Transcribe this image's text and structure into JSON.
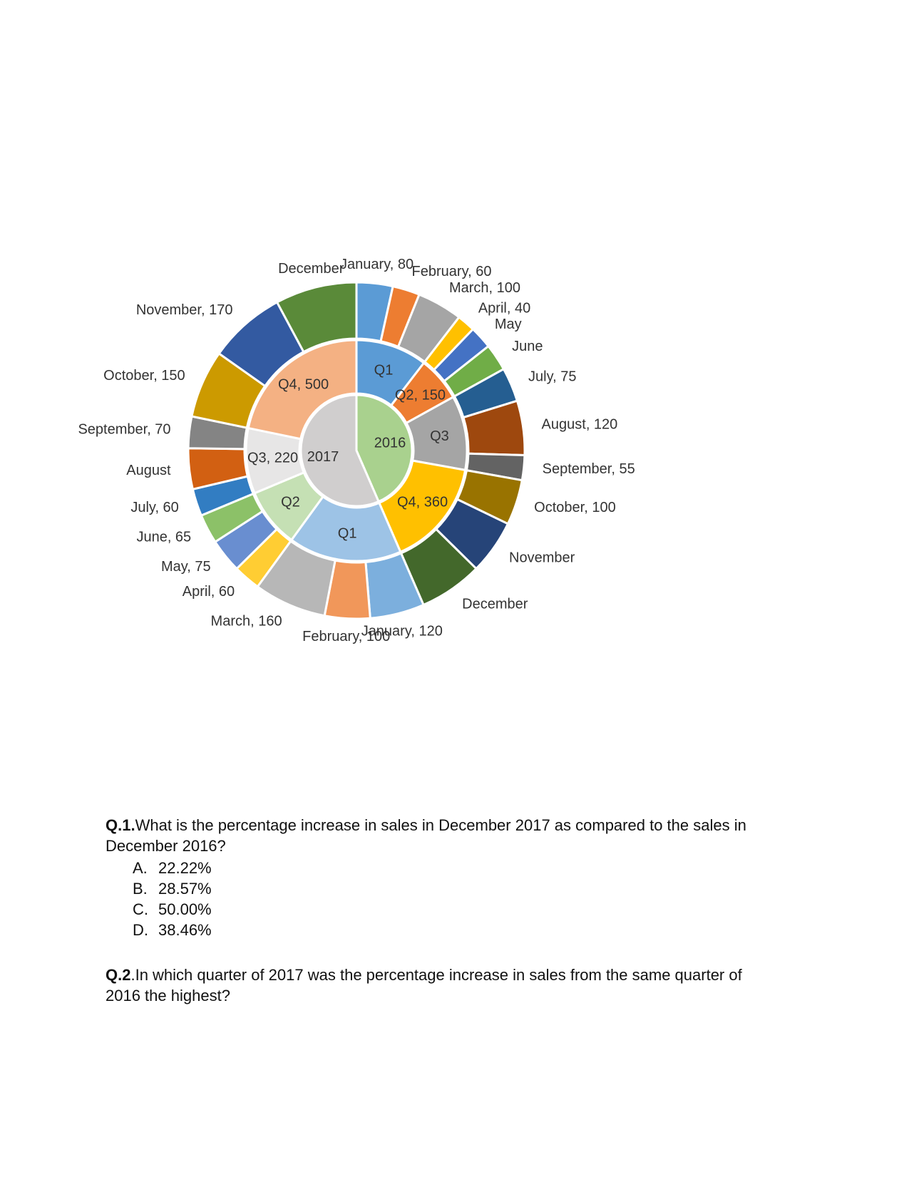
{
  "chart_data": {
    "type": "sunburst",
    "rings": [
      {
        "name": "2016",
        "color": "#a9d18e",
        "quarters": [
          {
            "label": "Q1",
            "value": 240,
            "color": "#5b9bd5",
            "show_value": false
          },
          {
            "label": "Q2",
            "value": 150,
            "color": "#ed7d31",
            "show_value": true
          },
          {
            "label": "Q3",
            "value": 250,
            "color": "#a5a5a5",
            "show_value": false
          },
          {
            "label": "Q4",
            "value": 360,
            "color": "#ffc000",
            "show_value": true
          }
        ],
        "months": [
          {
            "label": "January",
            "value": 80,
            "show_value": true,
            "color": "#5b9bd5"
          },
          {
            "label": "February",
            "value": 60,
            "show_value": true,
            "color": "#ed7d31"
          },
          {
            "label": "March",
            "value": 100,
            "show_value": true,
            "color": "#a5a5a5"
          },
          {
            "label": "April",
            "value": 40,
            "show_value": true,
            "color": "#ffc000"
          },
          {
            "label": "May",
            "value": 50,
            "show_value": false,
            "color": "#4472c4"
          },
          {
            "label": "June",
            "value": 60,
            "show_value": false,
            "color": "#70ad47"
          },
          {
            "label": "July",
            "value": 75,
            "show_value": true,
            "color": "#255e91"
          },
          {
            "label": "August",
            "value": 120,
            "show_value": true,
            "color": "#9e480e"
          },
          {
            "label": "September",
            "value": 55,
            "show_value": true,
            "color": "#636363"
          },
          {
            "label": "October",
            "value": 100,
            "show_value": true,
            "color": "#997300"
          },
          {
            "label": "November",
            "value": 120,
            "show_value": false,
            "color": "#264478"
          },
          {
            "label": "December",
            "value": 140,
            "show_value": false,
            "color": "#43682b"
          }
        ]
      },
      {
        "name": "2017",
        "color": "#d0cece",
        "quarters": [
          {
            "label": "Q1",
            "value": 380,
            "color": "#9dc3e6",
            "show_value": false
          },
          {
            "label": "Q2",
            "value": 200,
            "color": "#c5e0b4",
            "show_value": false
          },
          {
            "label": "Q3",
            "value": 220,
            "color": "#e7e6e6",
            "show_value": true
          },
          {
            "label": "Q4",
            "value": 500,
            "color": "#f4b183",
            "show_value": true
          }
        ],
        "months": [
          {
            "label": "January",
            "value": 120,
            "show_value": true,
            "color": "#7cafdd"
          },
          {
            "label": "February",
            "value": 100,
            "show_value": true,
            "color": "#f1975a"
          },
          {
            "label": "March",
            "value": 160,
            "show_value": true,
            "color": "#b7b7b7"
          },
          {
            "label": "April",
            "value": 60,
            "show_value": true,
            "color": "#ffcd33"
          },
          {
            "label": "May",
            "value": 75,
            "show_value": true,
            "color": "#698ed0"
          },
          {
            "label": "June",
            "value": 65,
            "show_value": true,
            "color": "#8cc168"
          },
          {
            "label": "July",
            "value": 60,
            "show_value": true,
            "color": "#327dc2"
          },
          {
            "label": "August",
            "value": 90,
            "show_value": false,
            "color": "#d26012"
          },
          {
            "label": "September",
            "value": 70,
            "show_value": true,
            "color": "#848484"
          },
          {
            "label": "October",
            "value": 150,
            "show_value": true,
            "color": "#cc9a00"
          },
          {
            "label": "November",
            "value": 170,
            "show_value": true,
            "color": "#335aa1"
          },
          {
            "label": "December",
            "value": 180,
            "show_value": false,
            "color": "#5a8a39"
          }
        ]
      }
    ]
  },
  "questions": [
    {
      "label": "Q.1.",
      "text": "What is the percentage increase in sales in December 2017 as compared to the sales in December 2016?",
      "options": [
        {
          "letter": "A.",
          "text": "22.22%"
        },
        {
          "letter": "B.",
          "text": "28.57%"
        },
        {
          "letter": "C.",
          "text": "50.00%"
        },
        {
          "letter": "D.",
          "text": "38.46%"
        }
      ]
    },
    {
      "label": "Q.2",
      "text": ".In which quarter of 2017 was the percentage increase in sales from the same quarter of 2016 the highest?"
    }
  ]
}
